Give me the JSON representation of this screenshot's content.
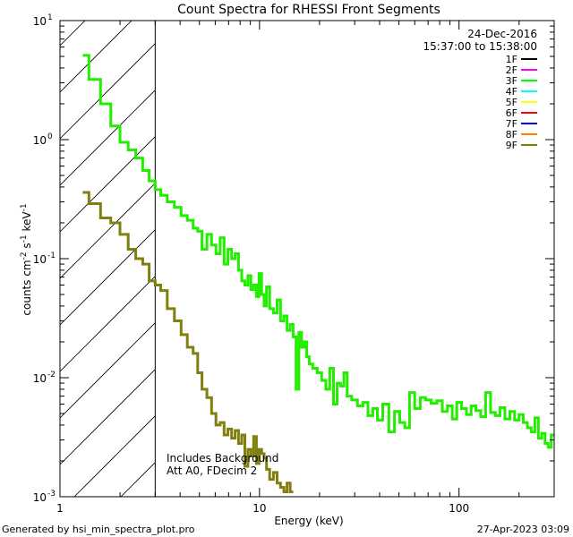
{
  "chart_data": {
    "type": "line",
    "title": "Count Spectra for RHESSI Front Segments",
    "xlabel": "Energy (keV)",
    "ylabel": "counts cm",
    "ylabel_parts": {
      "exp1": "-2",
      "s": " s",
      "exp2": "-1",
      "unit": " keV",
      "exp3": "-1"
    },
    "xscale": "log",
    "yscale": "log",
    "xlim": [
      1,
      300
    ],
    "ylim": [
      0.001,
      10
    ],
    "x_ticks": [
      {
        "value": 1,
        "label": "1"
      },
      {
        "value": 10,
        "label": "10"
      },
      {
        "value": 100,
        "label": "100"
      }
    ],
    "y_ticks": [
      {
        "value": 0.001,
        "base": "10",
        "exp": "-3"
      },
      {
        "value": 0.01,
        "base": "10",
        "exp": "-2"
      },
      {
        "value": 0.1,
        "base": "10",
        "exp": "-1"
      },
      {
        "value": 1,
        "base": "10",
        "exp": "0"
      },
      {
        "value": 10,
        "base": "10",
        "exp": "1"
      }
    ],
    "hatch_region": {
      "x_start": 1,
      "x_end": 3
    },
    "legend": {
      "position": "top-right",
      "date": "24-Dec-2016",
      "time_range": "15:37:00 to 15:38:00",
      "entries": [
        {
          "label": "1F",
          "color": "#000000"
        },
        {
          "label": "2F",
          "color": "#ff00ff"
        },
        {
          "label": "3F",
          "color": "#00ff00"
        },
        {
          "label": "4F",
          "color": "#00ffff"
        },
        {
          "label": "5F",
          "color": "#ffff00"
        },
        {
          "label": "6F",
          "color": "#ff0000"
        },
        {
          "label": "7F",
          "color": "#0000ff"
        },
        {
          "label": "8F",
          "color": "#ff8000"
        },
        {
          "label": "9F",
          "color": "#808000"
        }
      ]
    },
    "annotations": [
      "Includes Background",
      "Att A0, FDecim 2"
    ],
    "series": [
      {
        "name": "3F",
        "color": "#22ee00",
        "x": [
          1.3,
          1.5,
          1.7,
          1.9,
          2.1,
          2.3,
          2.5,
          2.7,
          2.9,
          3.1,
          3.3,
          3.6,
          3.9,
          4.2,
          4.5,
          4.8,
          5.0,
          5.3,
          5.6,
          5.9,
          6.2,
          6.5,
          6.8,
          7.1,
          7.4,
          7.7,
          8.0,
          8.3,
          8.6,
          8.9,
          9.2,
          9.5,
          9.8,
          10.1,
          10.4,
          10.7,
          11.0,
          11.5,
          12.0,
          12.5,
          13.0,
          13.5,
          14.0,
          14.5,
          15.0,
          15.5,
          16.0,
          16.5,
          17.0,
          17.5,
          18.0,
          19.0,
          20.0,
          21.0,
          22.0,
          23.0,
          24.0,
          25.0,
          26.0,
          27.0,
          28.0,
          30.0,
          32.0,
          34.0,
          36.0,
          38.0,
          40.0,
          43.0,
          46.0,
          49.0,
          52.0,
          55.0,
          58.0,
          62.0,
          66.0,
          70.0,
          75.0,
          80.0,
          85.0,
          90.0,
          95.0,
          100.0,
          106.0,
          112.0,
          118.0,
          125.0,
          132.0,
          140.0,
          148.0,
          156.0,
          165.0,
          175.0,
          185.0,
          195.0,
          205.0,
          215.0,
          225.0,
          235.0,
          245.0,
          255.0,
          265.0,
          275.0,
          285.0,
          295.0
        ],
        "values": [
          5.1,
          3.2,
          2.0,
          1.3,
          0.95,
          0.82,
          0.7,
          0.55,
          0.45,
          0.38,
          0.34,
          0.3,
          0.27,
          0.23,
          0.21,
          0.18,
          0.17,
          0.12,
          0.16,
          0.13,
          0.11,
          0.15,
          0.09,
          0.12,
          0.1,
          0.11,
          0.08,
          0.065,
          0.06,
          0.072,
          0.055,
          0.06,
          0.048,
          0.075,
          0.05,
          0.04,
          0.058,
          0.038,
          0.035,
          0.045,
          0.03,
          0.033,
          0.025,
          0.028,
          0.022,
          0.008,
          0.024,
          0.018,
          0.02,
          0.015,
          0.013,
          0.012,
          0.011,
          0.0095,
          0.008,
          0.012,
          0.006,
          0.009,
          0.0085,
          0.011,
          0.007,
          0.0065,
          0.0058,
          0.0062,
          0.0048,
          0.0055,
          0.0044,
          0.006,
          0.0035,
          0.0052,
          0.0042,
          0.0038,
          0.0075,
          0.0055,
          0.0068,
          0.0065,
          0.0061,
          0.0064,
          0.0052,
          0.0058,
          0.0045,
          0.0062,
          0.0055,
          0.0049,
          0.0058,
          0.0053,
          0.0047,
          0.0075,
          0.0051,
          0.0048,
          0.0056,
          0.0045,
          0.0052,
          0.0044,
          0.0049,
          0.0042,
          0.0038,
          0.0035,
          0.0046,
          0.0031,
          0.0034,
          0.0028,
          0.0026,
          0.0033
        ]
      },
      {
        "name": "9F",
        "color": "#808010",
        "x": [
          1.3,
          1.5,
          1.7,
          1.9,
          2.1,
          2.3,
          2.5,
          2.7,
          2.9,
          3.1,
          3.3,
          3.6,
          3.9,
          4.2,
          4.5,
          4.8,
          5.0,
          5.3,
          5.6,
          5.9,
          6.2,
          6.5,
          6.8,
          7.1,
          7.4,
          7.7,
          8.0,
          8.3,
          8.6,
          8.9,
          9.2,
          9.5,
          9.8,
          10.1,
          10.4,
          10.7,
          11.0,
          11.5,
          12.0,
          12.5,
          13.0,
          13.5,
          14.0,
          14.5
        ],
        "values": [
          0.36,
          0.29,
          0.22,
          0.2,
          0.16,
          0.12,
          0.1,
          0.09,
          0.065,
          0.06,
          0.054,
          0.038,
          0.03,
          0.023,
          0.018,
          0.016,
          0.011,
          0.008,
          0.0068,
          0.005,
          0.004,
          0.0042,
          0.0033,
          0.0037,
          0.0031,
          0.0036,
          0.0028,
          0.0033,
          0.0018,
          0.0025,
          0.0022,
          0.0032,
          0.0019,
          0.0025,
          0.0023,
          0.0021,
          0.0017,
          0.0014,
          0.0016,
          0.0013,
          0.0012,
          0.0011,
          0.0013,
          0.0011
        ]
      }
    ]
  },
  "footer": {
    "generated_by": "Generated by hsi_min_spectra_plot.pro",
    "timestamp": "27-Apr-2023 03:09"
  }
}
